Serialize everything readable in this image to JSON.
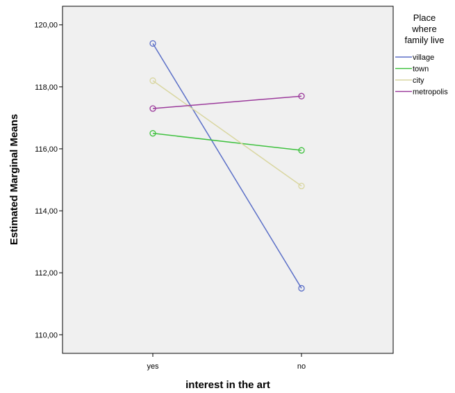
{
  "chart_data": {
    "type": "line",
    "title": "",
    "xlabel": "interest in the art",
    "ylabel": "Estimated Marginal Means",
    "categories": [
      "yes",
      "no"
    ],
    "ylim": [
      109.4,
      120.6
    ],
    "yticks": [
      110,
      112,
      114,
      116,
      118,
      120
    ],
    "ytick_labels": [
      "110,00",
      "112,00",
      "114,00",
      "116,00",
      "118,00",
      "120,00"
    ],
    "grid": false,
    "legend_position": "right",
    "legend_title_lines": [
      "Place",
      "where",
      "family live"
    ],
    "series": [
      {
        "name": "village",
        "color": "#5b6fc7",
        "values": [
          119.4,
          111.5
        ]
      },
      {
        "name": "town",
        "color": "#3ec13e",
        "values": [
          116.5,
          115.95
        ]
      },
      {
        "name": "city",
        "color": "#d9d6a0",
        "values": [
          118.2,
          114.8
        ]
      },
      {
        "name": "metropolis",
        "color": "#9b3a9b",
        "values": [
          117.3,
          117.7
        ]
      }
    ],
    "plot_background": "#f0f0f0",
    "marker": "open-circle"
  }
}
